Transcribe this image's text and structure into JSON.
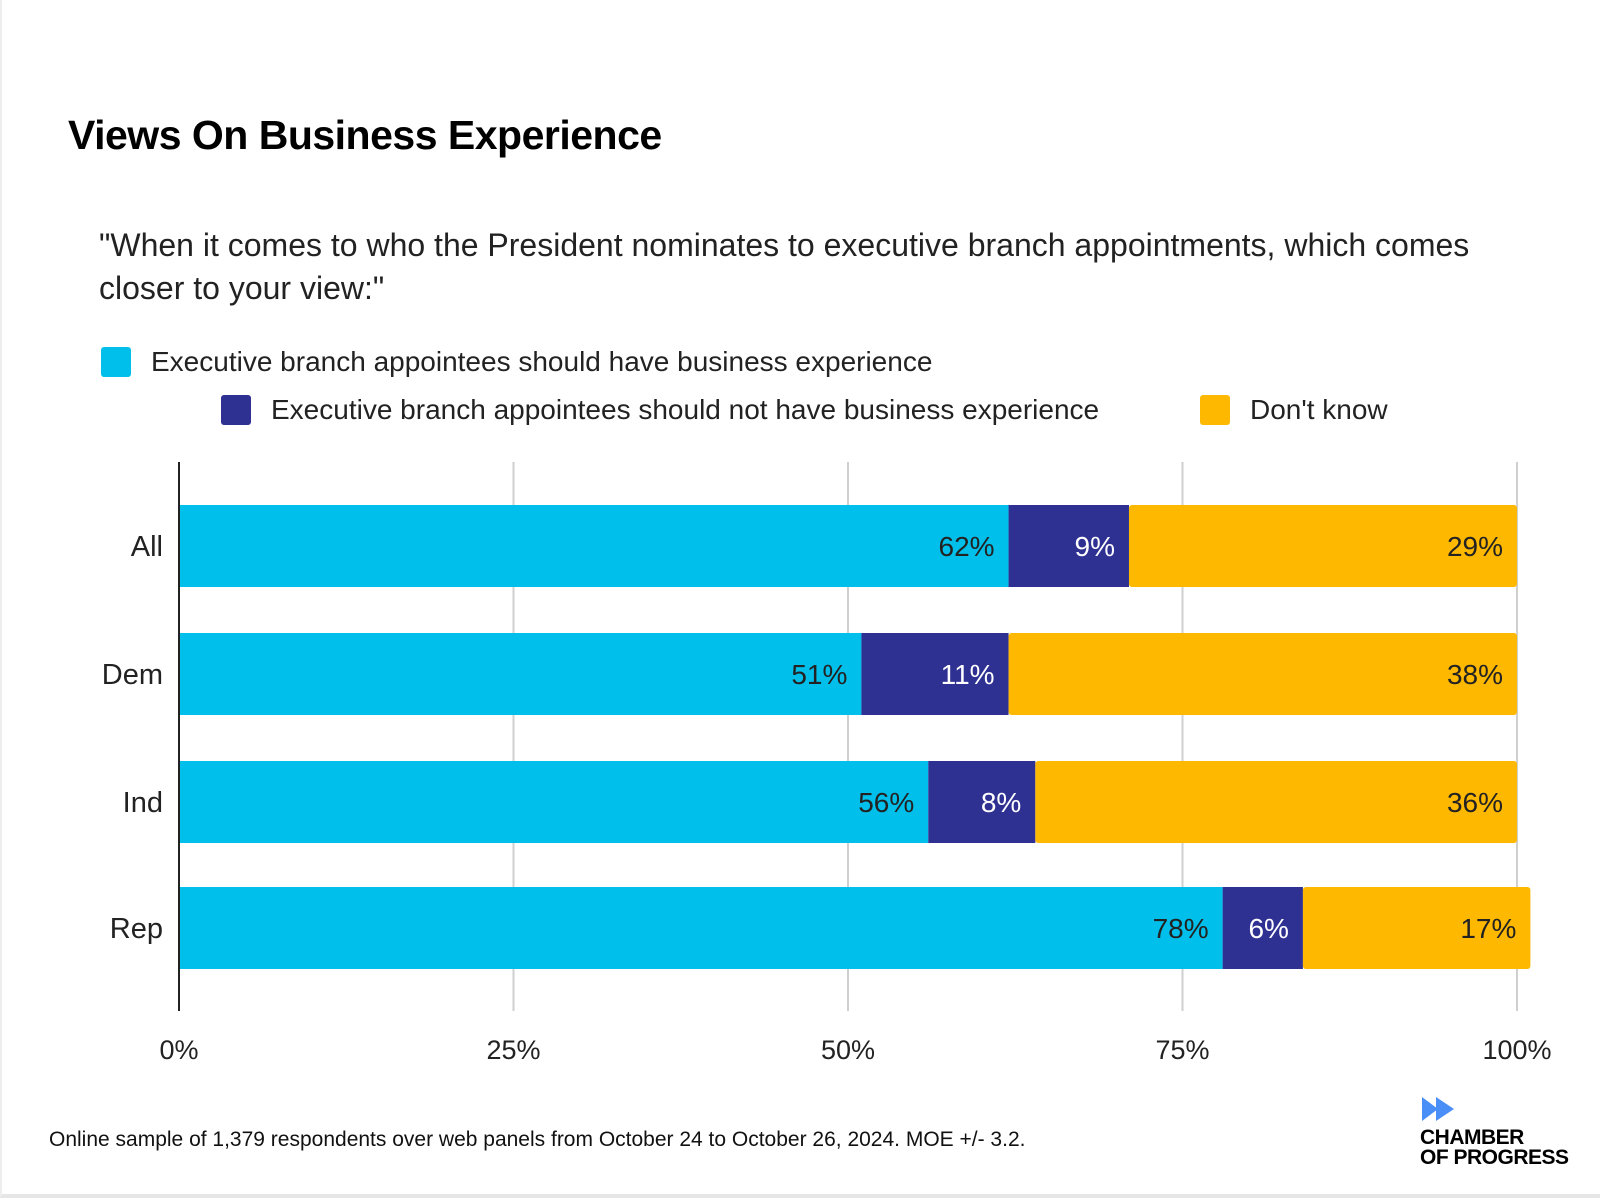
{
  "title": "Views On Business Experience",
  "subtitle": "\"When it comes to who the President nominates to executive branch appointments, which comes closer to your view:\"",
  "footnote": "Online sample of 1,379 respondents over web panels from October 24 to October 26, 2024. MOE +/- 3.2.",
  "logo": {
    "line1": "CHAMBER",
    "line2": "OF PROGRESS",
    "icon": "fast-forward-icon",
    "color": "#4A8EF7"
  },
  "chart_data": {
    "type": "bar",
    "orientation": "horizontal",
    "stacked": true,
    "categories": [
      "All",
      "Dem",
      "Ind",
      "Rep"
    ],
    "series": [
      {
        "name": "Executive branch appointees should have business experience",
        "color": "#00BFEA",
        "values": [
          62,
          51,
          56,
          78
        ],
        "labels": [
          "62%",
          "51%",
          "56%",
          "78%"
        ]
      },
      {
        "name": "Executive branch appointees should not have business experience",
        "color": "#2E3192",
        "values": [
          9,
          11,
          8,
          6
        ],
        "labels": [
          "9%",
          "11%",
          "8%",
          "6%"
        ]
      },
      {
        "name": "Don't know",
        "color": "#FFB800",
        "values": [
          29,
          38,
          36,
          17
        ],
        "labels": [
          "29%",
          "38%",
          "36%",
          "17%"
        ]
      }
    ],
    "xlim": [
      0,
      100
    ],
    "xticks": [
      0,
      25,
      50,
      75,
      100
    ],
    "xtick_labels": [
      "0%",
      "25%",
      "50%",
      "75%",
      "100%"
    ],
    "grid": true,
    "legend_position": "top"
  }
}
